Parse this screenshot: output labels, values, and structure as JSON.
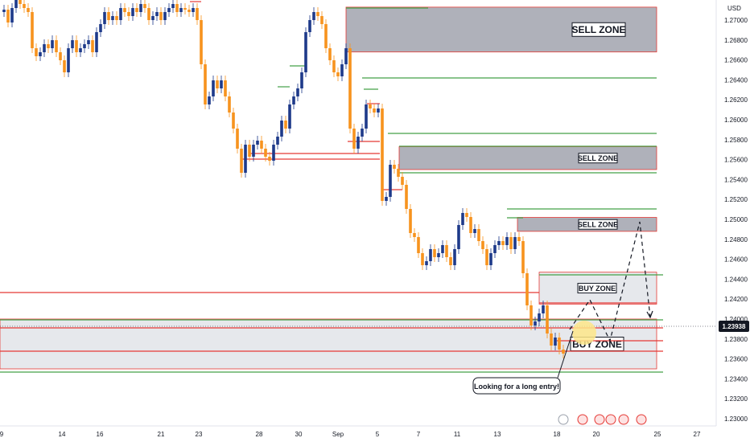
{
  "chart_data": {
    "type": "candlestick",
    "currency_label": "USD",
    "last_price": "1.23938",
    "y_ticks": [
      "1.27000",
      "1.26800",
      "1.26600",
      "1.26400",
      "1.26200",
      "1.26000",
      "1.25800",
      "1.25600",
      "1.25400",
      "1.25200",
      "1.25000",
      "1.24800",
      "1.24600",
      "1.24400",
      "1.24200",
      "1.24000",
      "1.23800",
      "1.23600",
      "1.23400",
      "1.23200",
      "1.23000"
    ],
    "x_ticks": [
      "9",
      "14",
      "16",
      "21",
      "23",
      "28",
      "30",
      "Sep",
      "5",
      "7",
      "11",
      "13",
      "18",
      "20",
      "25",
      "27"
    ],
    "zones": [
      {
        "label": "SELL ZONE",
        "kind": "sell",
        "top": 1.2713,
        "bottom": 1.2668
      },
      {
        "label": "SELL ZONE",
        "kind": "sell",
        "top": 1.2573,
        "bottom": 1.255
      },
      {
        "label": "SELL ZONE",
        "kind": "sell",
        "top": 1.2502,
        "bottom": 1.2488
      },
      {
        "label": "BUY ZONE",
        "kind": "buy",
        "top": 1.2447,
        "bottom": 1.2415
      },
      {
        "label": "BUY ZONE",
        "kind": "buy",
        "top": 1.24,
        "bottom": 1.235
      }
    ],
    "annotation": "Looking for a long entry!"
  },
  "colors": {
    "up": "#1e3a8a",
    "down": "#f7931e",
    "zone_fill": "#9da0ab",
    "buy_fill": "#e3e5ea",
    "red_line": "#e53935",
    "green_line": "#43a047",
    "price_tag": "#131722"
  }
}
